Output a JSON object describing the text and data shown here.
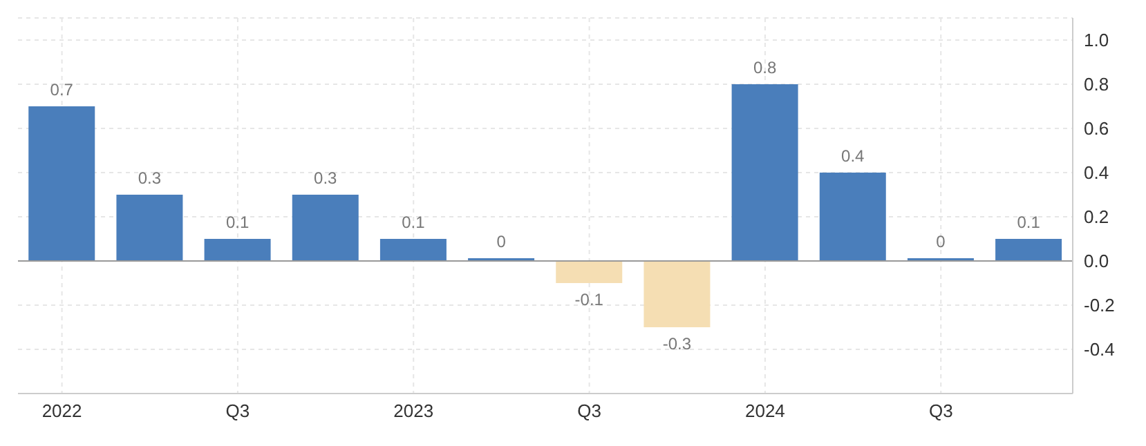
{
  "chart_data": {
    "type": "bar",
    "categories": [
      "2022",
      null,
      "Q3",
      null,
      "2023",
      null,
      "Q3",
      null,
      "2024",
      null,
      "Q3",
      null
    ],
    "values": [
      0.7,
      0.3,
      0.1,
      0.3,
      0.1,
      0,
      -0.1,
      -0.3,
      0.8,
      0.4,
      0,
      0.1
    ],
    "colors": [
      "#4a7ebb",
      "#4a7ebb",
      "#4a7ebb",
      "#4a7ebb",
      "#4a7ebb",
      "#4a7ebb",
      "#f5deb3",
      "#f5deb3",
      "#4a7ebb",
      "#4a7ebb",
      "#4a7ebb",
      "#4a7ebb"
    ],
    "ylim": [
      -0.6,
      1.1
    ],
    "yticks": [
      {
        "value": -0.4,
        "label": "-0.4"
      },
      {
        "value": -0.2,
        "label": "-0.2"
      },
      {
        "value": 0,
        "label": "0.0"
      },
      {
        "value": 0.2,
        "label": "0.2"
      },
      {
        "value": 0.4,
        "label": "0.4"
      },
      {
        "value": 0.6,
        "label": "0.6"
      },
      {
        "value": 0.8,
        "label": "0.8"
      },
      {
        "value": 1,
        "label": "1.0"
      }
    ],
    "grid": true,
    "data_labels": true
  }
}
